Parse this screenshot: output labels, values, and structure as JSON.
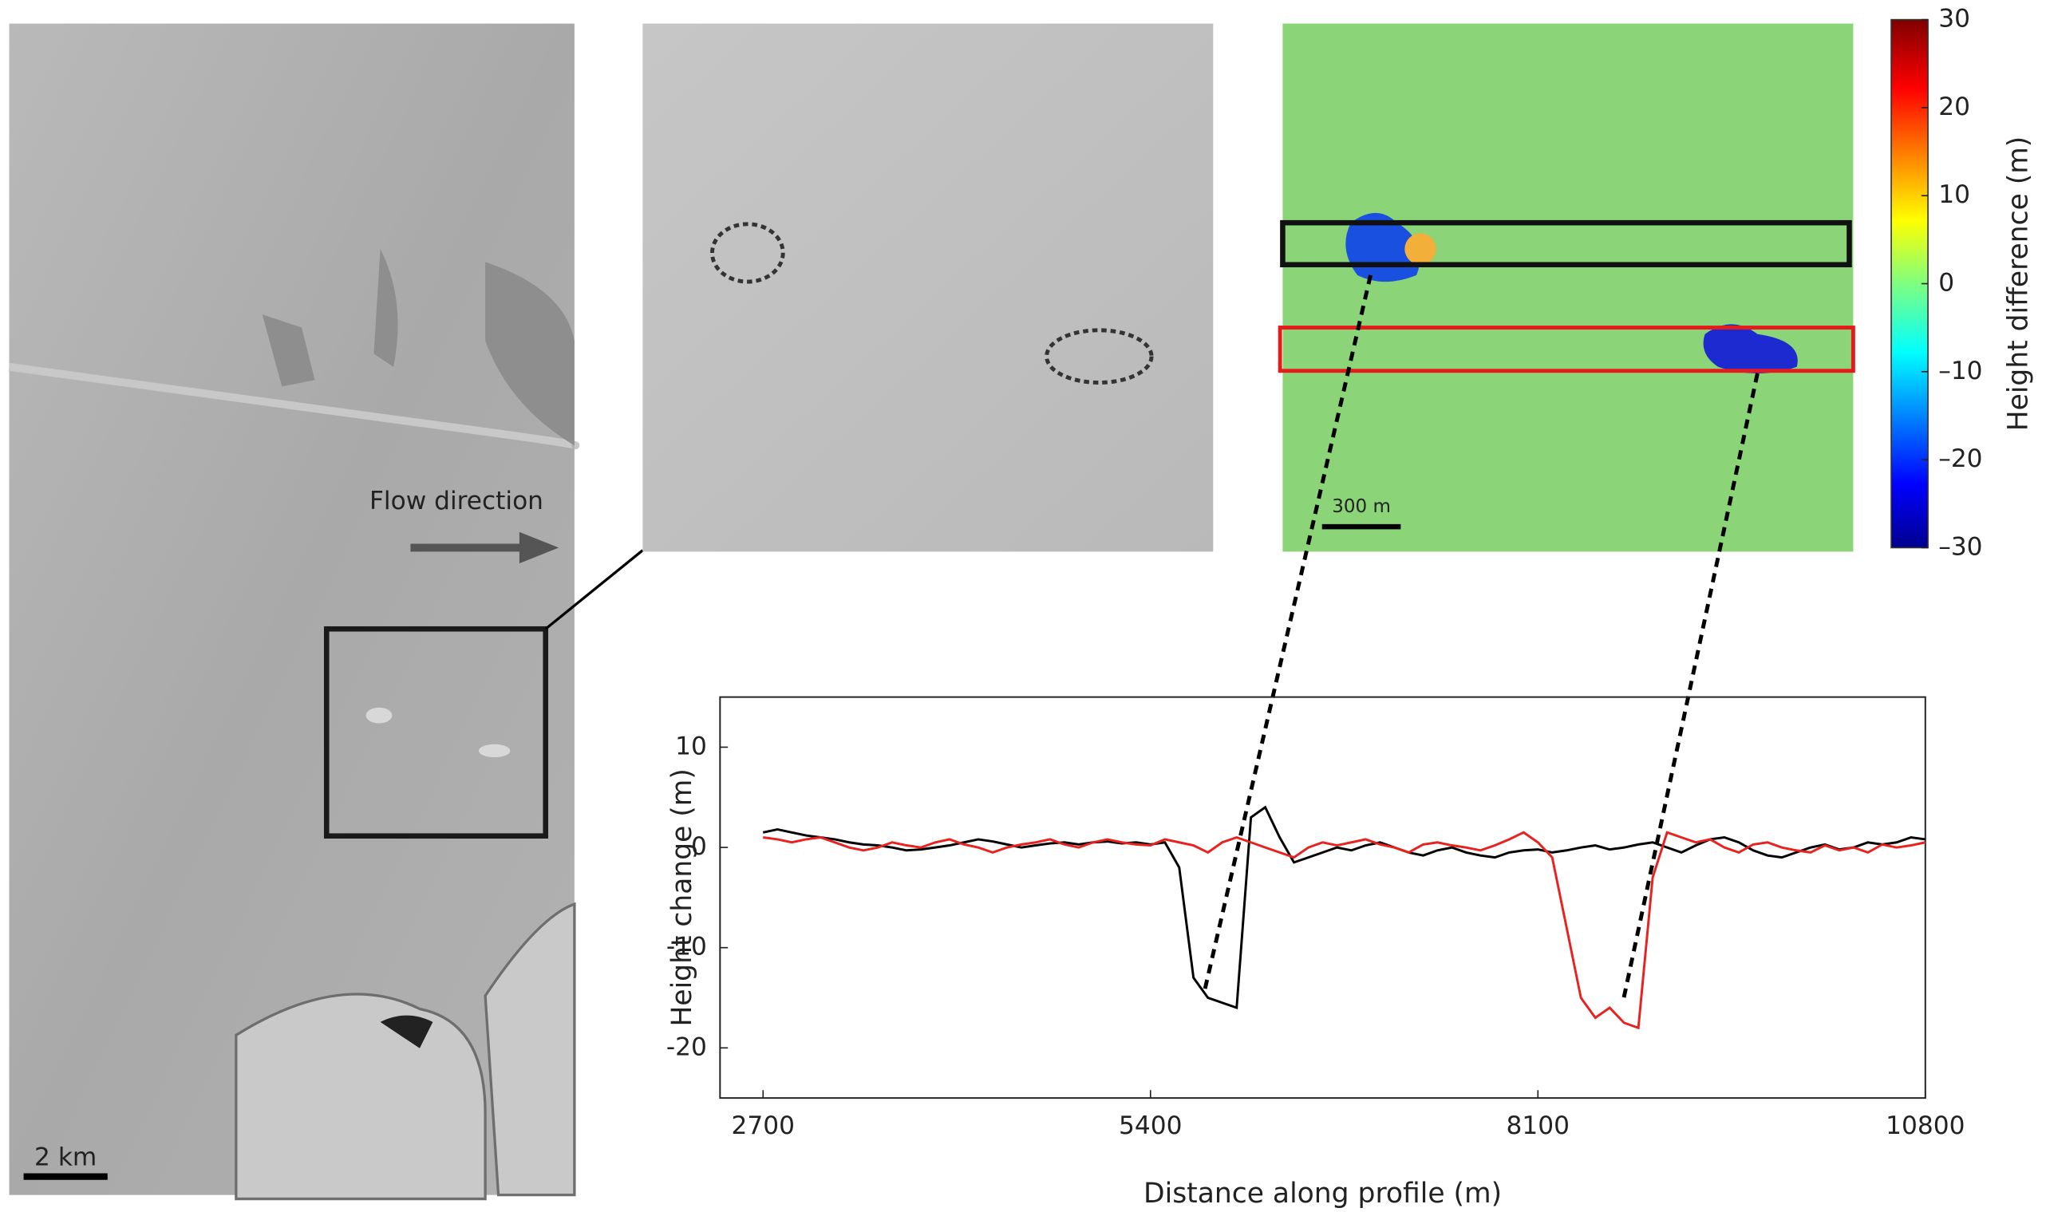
{
  "chart_data": [
    {
      "type": "line",
      "x_label": "Distance along profile (m)",
      "y_label": "Height change (m)",
      "x": [
        2700,
        2800,
        2900,
        3000,
        3100,
        3200,
        3300,
        3400,
        3500,
        3600,
        3700,
        3800,
        3900,
        4000,
        4100,
        4200,
        4300,
        4400,
        4500,
        4600,
        4700,
        4800,
        4900,
        5000,
        5100,
        5200,
        5300,
        5400,
        5500,
        5600,
        5700,
        5800,
        5900,
        6000,
        6100,
        6200,
        6300,
        6400,
        6500,
        6600,
        6700,
        6800,
        6900,
        7000,
        7100,
        7200,
        7300,
        7400,
        7500,
        7600,
        7700,
        7800,
        7900,
        8000,
        8100,
        8200,
        8300,
        8400,
        8500,
        8600,
        8700,
        8800,
        8900,
        9000,
        9100,
        9200,
        9300,
        9400,
        9500,
        9600,
        9700,
        9800,
        9900,
        10000,
        10100,
        10200,
        10300,
        10400,
        10500,
        10600,
        10700,
        10800
      ],
      "series": [
        {
          "name": "Black profile",
          "color": "#000000",
          "values": [
            1.5,
            1.8,
            1.5,
            1.2,
            1.0,
            0.8,
            0.5,
            0.3,
            0.2,
            0,
            -0.3,
            -0.2,
            0,
            0.2,
            0.5,
            0.8,
            0.6,
            0.3,
            0,
            0.2,
            0.4,
            0.5,
            0.3,
            0.5,
            0.6,
            0.4,
            0.5,
            0.3,
            0.5,
            -2,
            -13,
            -15,
            -15.5,
            -16,
            3,
            4,
            1,
            -1.5,
            -1,
            -0.5,
            0,
            -0.3,
            0.2,
            0.5,
            0,
            -0.5,
            -0.8,
            -0.3,
            0,
            -0.5,
            -0.8,
            -1,
            -0.5,
            -0.3,
            -0.2,
            -0.5,
            -0.3,
            0,
            0.2,
            -0.2,
            0,
            0.3,
            0.5,
            0,
            -0.5,
            0.2,
            0.8,
            1,
            0.5,
            -0.3,
            -0.8,
            -1,
            -0.5,
            0,
            0.3,
            -0.2,
            0,
            0.5,
            0.3,
            0.5,
            1.0,
            0.8
          ]
        },
        {
          "name": "Red profile",
          "color": "#e8221f",
          "values": [
            1,
            0.8,
            0.5,
            0.8,
            1,
            0.5,
            0,
            -0.3,
            0,
            0.5,
            0.2,
            0,
            0.5,
            0.8,
            0.3,
            0,
            -0.5,
            0,
            0.3,
            0.5,
            0.8,
            0.3,
            0,
            0.5,
            0.8,
            0.5,
            0.3,
            0.2,
            0.8,
            0.5,
            0.2,
            -0.5,
            0.5,
            1,
            0.5,
            0,
            -0.5,
            -1,
            0,
            0.5,
            0.2,
            0.5,
            0.8,
            0.3,
            0,
            -0.5,
            0.3,
            0.5,
            0.2,
            0,
            -0.3,
            0.2,
            0.8,
            1.5,
            0.5,
            -1,
            -8,
            -15,
            -17,
            -16,
            -17.5,
            -18,
            -3,
            1.5,
            1,
            0.5,
            0.8,
            0,
            -0.5,
            0.3,
            0.5,
            0,
            -0.3,
            -0.5,
            0.2,
            -0.3,
            0,
            -0.5,
            0.3,
            0,
            0.2,
            0.5
          ]
        }
      ],
      "xlim": [
        2400,
        10800
      ],
      "xticks": [
        2700,
        5400,
        8100,
        10800
      ],
      "ylim": [
        -25,
        15
      ],
      "yticks": [
        10,
        0,
        -10,
        -20
      ]
    },
    {
      "type": "colorbar",
      "y_label": "Height difference (m)",
      "ylim": [
        -30,
        30
      ],
      "yticks": [
        30,
        20,
        10,
        0,
        {
          "value": -10,
          "label": "–10"
        },
        {
          "value": -20,
          "label": "–20"
        },
        {
          "value": -30,
          "label": "–30"
        }
      ]
    }
  ],
  "panels": {
    "flow_direction": "Flow direction",
    "scale_bar_left": "2 km",
    "scale_bar_map": "300 m"
  }
}
